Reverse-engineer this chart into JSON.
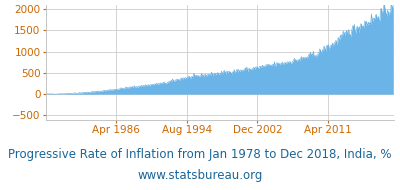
{
  "title_line1": "Progressive Rate of Inflation from Jan 1978 to Dec 2018, India, %",
  "title_line2": "www.statsbureau.org",
  "title_color": "#1a6699",
  "fill_color": "#6ab4e8",
  "line_color": "#5aaae0",
  "background_color": "#ffffff",
  "plot_bg_color": "#ffffff",
  "grid_color": "#cccccc",
  "ylim": [
    -600,
    2100
  ],
  "yticks": [
    -500,
    0,
    500,
    1000,
    1500,
    2000
  ],
  "xtick_dates": [
    "Apr 1986",
    "Aug 1994",
    "Dec 2002",
    "Apr 2011"
  ],
  "xtick_years": [
    1986.25,
    1994.583,
    2002.917,
    2011.25
  ],
  "title_fontsize": 8.5,
  "subtitle_fontsize": 8.5,
  "tick_fontsize": 7.5,
  "tick_color": "#cc6600",
  "xlim_start": 1978.0,
  "xlim_end": 2019.0,
  "curve_anchors_x": [
    1978.0,
    1980.0,
    1982.0,
    1984.0,
    1986.0,
    1988.0,
    1990.0,
    1992.0,
    1994.0,
    1996.0,
    1998.0,
    2000.0,
    2002.0,
    2004.0,
    2006.0,
    2008.0,
    2010.0,
    2012.0,
    2014.0,
    2016.0,
    2018.0,
    2019.0
  ],
  "curve_anchors_y": [
    0,
    10,
    30,
    60,
    110,
    160,
    210,
    260,
    370,
    430,
    480,
    530,
    590,
    660,
    730,
    820,
    950,
    1200,
    1500,
    1700,
    1950,
    2000
  ]
}
